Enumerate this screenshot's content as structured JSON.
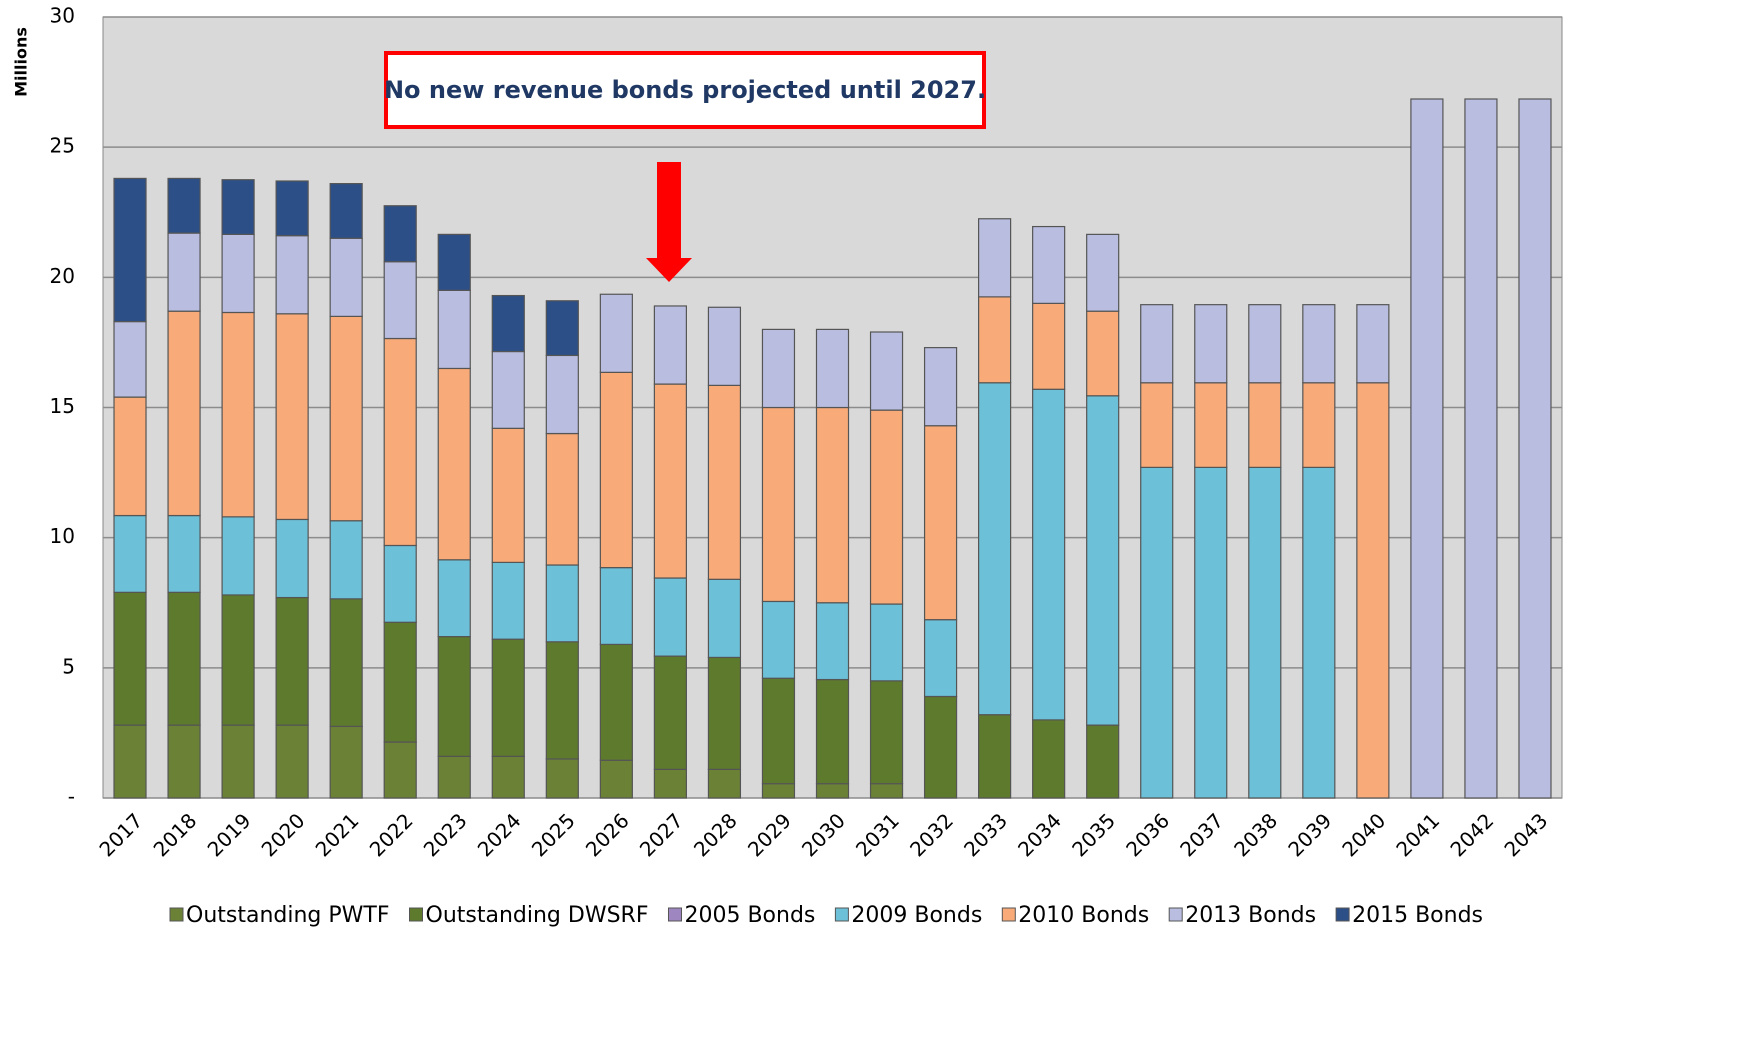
{
  "chart_data": {
    "type": "stacked_bar",
    "y_label": "Millions",
    "annotation": "No new revenue bonds projected until 2027.",
    "categories": [
      "2017",
      "2018",
      "2019",
      "2020",
      "2021",
      "2022",
      "2023",
      "2024",
      "2025",
      "2026",
      "2027",
      "2028",
      "2029",
      "2030",
      "2031",
      "2032",
      "2033",
      "2034",
      "2035",
      "2036",
      "2037",
      "2038",
      "2039",
      "2040",
      "2041",
      "2042",
      "2043"
    ],
    "series": [
      {
        "name": "Outstanding PWTF",
        "color": "#6b8236",
        "values": [
          2.8,
          2.8,
          2.8,
          2.8,
          2.75,
          2.15,
          1.6,
          1.6,
          1.5,
          1.45,
          1.1,
          1.1,
          0.55,
          0.55,
          0.55,
          0,
          0,
          0,
          0,
          0,
          0,
          0,
          0,
          0,
          0,
          0,
          0
        ]
      },
      {
        "name": "Outstanding DWSRF",
        "color": "#5e7a2c",
        "values": [
          5.1,
          5.1,
          5.0,
          4.9,
          4.9,
          4.6,
          4.6,
          4.5,
          4.5,
          4.45,
          4.35,
          4.3,
          4.05,
          4.0,
          3.95,
          3.9,
          3.2,
          3.0,
          2.8,
          0,
          0,
          0,
          0,
          0,
          0,
          0,
          0
        ]
      },
      {
        "name": "2005 Bonds",
        "color": "#9e86c0",
        "values": [
          0,
          0,
          0,
          0,
          0,
          0,
          0,
          0,
          0,
          0,
          0,
          0,
          0,
          0,
          0,
          0,
          0,
          0,
          0,
          0,
          0,
          0,
          0,
          0,
          0,
          0,
          0
        ]
      },
      {
        "name": "2009 Bonds",
        "color": "#6cc0d8",
        "values": [
          2.95,
          2.95,
          3.0,
          3.0,
          3.0,
          2.95,
          2.95,
          2.95,
          2.95,
          2.95,
          3.0,
          3.0,
          2.95,
          2.95,
          2.95,
          2.95,
          12.75,
          12.7,
          12.65,
          12.7,
          12.7,
          12.7,
          12.7,
          0,
          0,
          0,
          0
        ]
      },
      {
        "name": "2010 Bonds",
        "color": "#f8ab78",
        "values": [
          4.55,
          7.85,
          7.85,
          7.9,
          7.85,
          7.95,
          7.35,
          5.15,
          5.05,
          7.5,
          7.45,
          7.45,
          7.45,
          7.5,
          7.45,
          7.45,
          3.3,
          3.3,
          3.25,
          3.25,
          3.25,
          3.25,
          3.25,
          15.95,
          0,
          0,
          0
        ]
      },
      {
        "name": "2013 Bonds",
        "color": "#b9bee0",
        "values": [
          2.9,
          3.0,
          3.0,
          3.0,
          3.0,
          2.95,
          3.0,
          2.95,
          3.0,
          3.0,
          3.0,
          3.0,
          3.0,
          3.0,
          3.0,
          3.0,
          3.0,
          2.95,
          2.95,
          3.0,
          3.0,
          3.0,
          3.0,
          3.0,
          26.85,
          26.85,
          26.85
        ]
      },
      {
        "name": "2015 Bonds",
        "color": "#2c4f87",
        "values": [
          5.5,
          2.1,
          2.1,
          2.1,
          2.1,
          2.15,
          2.15,
          2.15,
          2.1,
          0,
          0,
          0,
          0,
          0,
          0,
          0,
          0,
          0,
          0,
          0,
          0,
          0,
          0,
          0,
          0,
          0,
          0
        ]
      }
    ],
    "ylim": [
      0,
      30
    ],
    "yticks": [
      {
        "value": 0,
        "label": "-"
      },
      5,
      10,
      15,
      20,
      25,
      30
    ],
    "grid": true
  }
}
